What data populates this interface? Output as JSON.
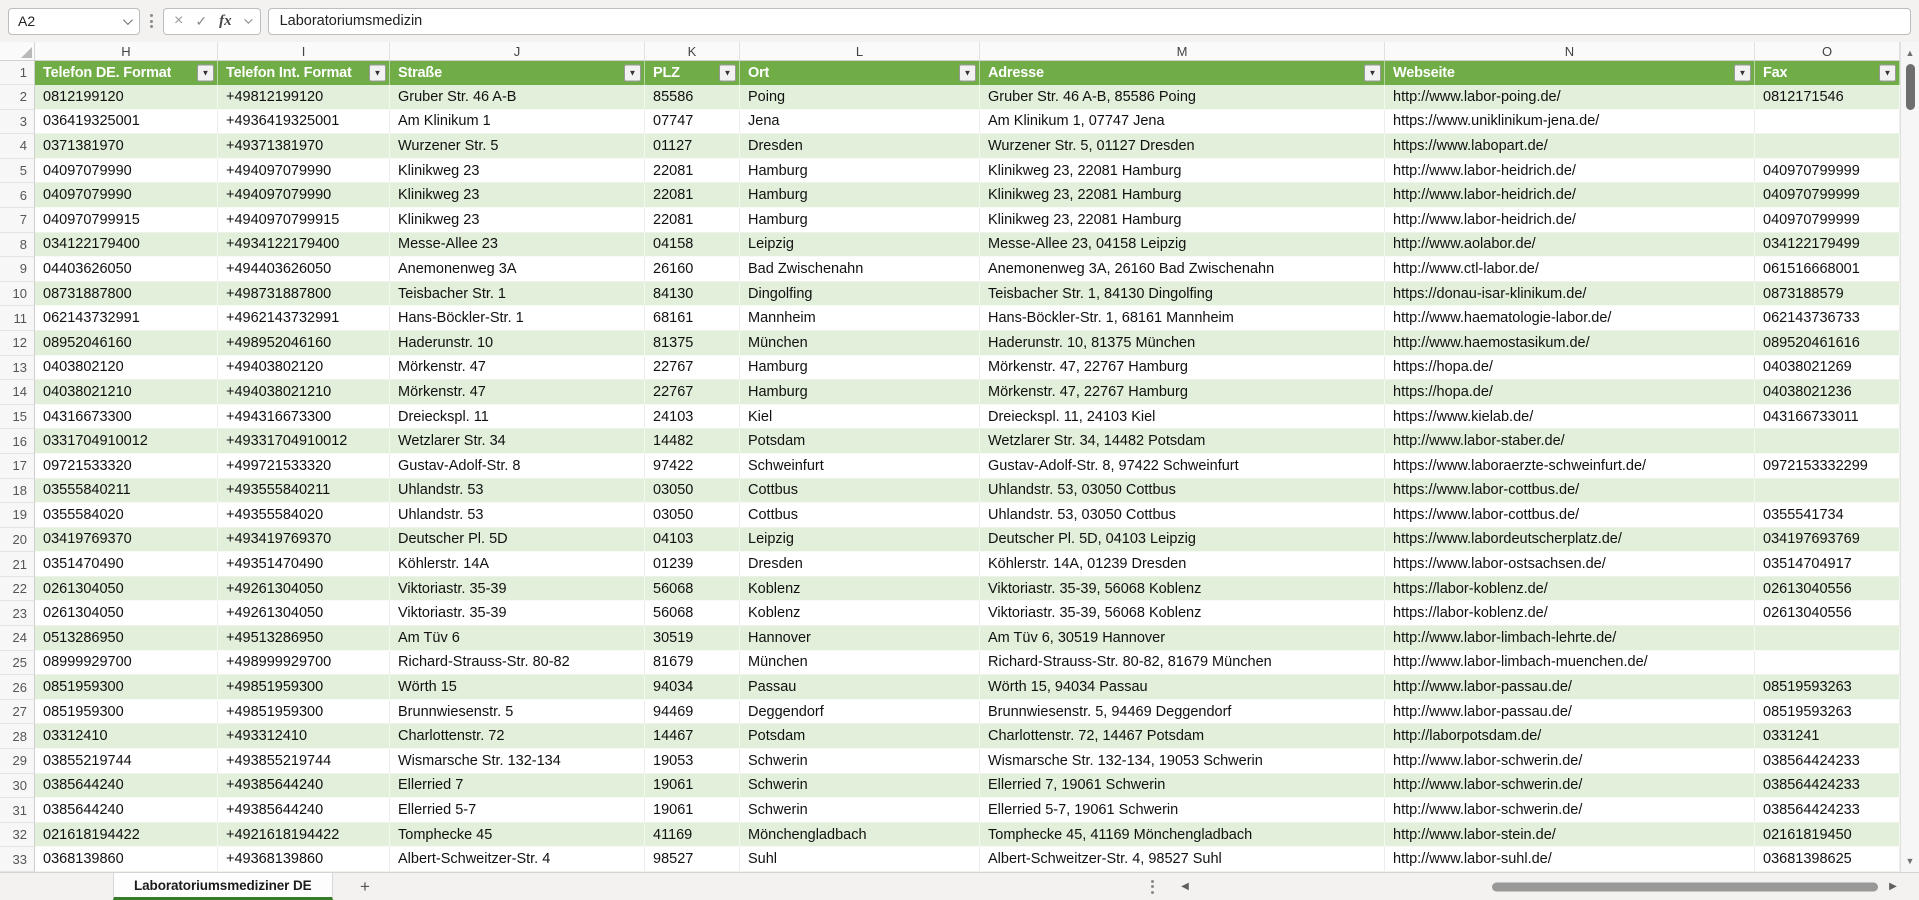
{
  "app": {
    "name_box": "A2",
    "formula_bar": "Laboratoriumsmedizin"
  },
  "icons": {
    "cancel": "×",
    "accept": "✓",
    "fx": "fx",
    "filter": "▼",
    "scroll_up": "▲",
    "scroll_down": "▼",
    "tab_prev": "◀",
    "tab_next": "▶",
    "add_sheet": "+"
  },
  "colors": {
    "header_green": "#70AD47",
    "banded_row_green": "#E2EFDA",
    "tab_underline_green": "#367C2B"
  },
  "sheet": {
    "header_row_number": "1",
    "first_data_row_number": 2,
    "columns": [
      {
        "letter": "H",
        "label": "Telefon DE. Format"
      },
      {
        "letter": "I",
        "label": "Telefon Int. Format"
      },
      {
        "letter": "J",
        "label": "Straße"
      },
      {
        "letter": "K",
        "label": "PLZ"
      },
      {
        "letter": "L",
        "label": "Ort"
      },
      {
        "letter": "M",
        "label": "Adresse"
      },
      {
        "letter": "N",
        "label": "Webseite"
      },
      {
        "letter": "O",
        "label": "Fax"
      }
    ],
    "rows": [
      [
        "0812199120",
        "+49812199120",
        "Gruber Str. 46 A-B",
        "85586",
        "Poing",
        "Gruber Str. 46 A-B, 85586 Poing",
        "http://www.labor-poing.de/",
        "0812171546"
      ],
      [
        "036419325001",
        "+4936419325001",
        "Am Klinikum 1",
        "07747",
        "Jena",
        "Am Klinikum 1, 07747 Jena",
        "https://www.uniklinikum-jena.de/",
        ""
      ],
      [
        "0371381970",
        "+49371381970",
        "Wurzener Str. 5",
        "01127",
        "Dresden",
        "Wurzener Str. 5, 01127 Dresden",
        "https://www.labopart.de/",
        ""
      ],
      [
        "04097079990",
        "+494097079990",
        "Klinikweg 23",
        "22081",
        "Hamburg",
        "Klinikweg 23, 22081 Hamburg",
        "http://www.labor-heidrich.de/",
        "040970799999"
      ],
      [
        "04097079990",
        "+494097079990",
        "Klinikweg 23",
        "22081",
        "Hamburg",
        "Klinikweg 23, 22081 Hamburg",
        "http://www.labor-heidrich.de/",
        "040970799999"
      ],
      [
        "040970799915",
        "+4940970799915",
        "Klinikweg 23",
        "22081",
        "Hamburg",
        "Klinikweg 23, 22081 Hamburg",
        "http://www.labor-heidrich.de/",
        "040970799999"
      ],
      [
        "034122179400",
        "+4934122179400",
        "Messe-Allee 23",
        "04158",
        "Leipzig",
        "Messe-Allee 23, 04158 Leipzig",
        "http://www.aolabor.de/",
        "034122179499"
      ],
      [
        "04403626050",
        "+494403626050",
        "Anemonenweg 3A",
        "26160",
        "Bad Zwischenahn",
        "Anemonenweg 3A, 26160 Bad Zwischenahn",
        "http://www.ctl-labor.de/",
        "061516668001"
      ],
      [
        "08731887800",
        "+498731887800",
        "Teisbacher Str. 1",
        "84130",
        "Dingolfing",
        "Teisbacher Str. 1, 84130 Dingolfing",
        "https://donau-isar-klinikum.de/",
        "0873188579"
      ],
      [
        "062143732991",
        "+4962143732991",
        "Hans-Böckler-Str. 1",
        "68161",
        "Mannheim",
        "Hans-Böckler-Str. 1, 68161 Mannheim",
        "http://www.haematologie-labor.de/",
        "062143736733"
      ],
      [
        "08952046160",
        "+498952046160",
        "Haderunstr. 10",
        "81375",
        "München",
        "Haderunstr. 10, 81375 München",
        "http://www.haemostasikum.de/",
        "089520461616"
      ],
      [
        "0403802120",
        "+49403802120",
        "Mörkenstr. 47",
        "22767",
        "Hamburg",
        "Mörkenstr. 47, 22767 Hamburg",
        "https://hopa.de/",
        "04038021269"
      ],
      [
        "04038021210",
        "+494038021210",
        "Mörkenstr. 47",
        "22767",
        "Hamburg",
        "Mörkenstr. 47, 22767 Hamburg",
        "https://hopa.de/",
        "04038021236"
      ],
      [
        "04316673300",
        "+494316673300",
        "Dreieckspl. 11",
        "24103",
        "Kiel",
        "Dreieckspl. 11, 24103 Kiel",
        "https://www.kielab.de/",
        "043166733011"
      ],
      [
        "0331704910012",
        "+49331704910012",
        "Wetzlarer Str. 34",
        "14482",
        "Potsdam",
        "Wetzlarer Str. 34, 14482 Potsdam",
        "http://www.labor-staber.de/",
        ""
      ],
      [
        "09721533320",
        "+499721533320",
        "Gustav-Adolf-Str. 8",
        "97422",
        "Schweinfurt",
        "Gustav-Adolf-Str. 8, 97422 Schweinfurt",
        "https://www.laboraerzte-schweinfurt.de/",
        "0972153332299"
      ],
      [
        "03555840211",
        "+493555840211",
        "Uhlandstr. 53",
        "03050",
        "Cottbus",
        "Uhlandstr. 53, 03050 Cottbus",
        "https://www.labor-cottbus.de/",
        ""
      ],
      [
        "0355584020",
        "+49355584020",
        "Uhlandstr. 53",
        "03050",
        "Cottbus",
        "Uhlandstr. 53, 03050 Cottbus",
        "https://www.labor-cottbus.de/",
        "0355541734"
      ],
      [
        "03419769370",
        "+493419769370",
        "Deutscher Pl. 5D",
        "04103",
        "Leipzig",
        "Deutscher Pl. 5D, 04103 Leipzig",
        "https://www.labordeutscherplatz.de/",
        "034197693769"
      ],
      [
        "0351470490",
        "+49351470490",
        "Köhlerstr. 14A",
        "01239",
        "Dresden",
        "Köhlerstr. 14A, 01239 Dresden",
        "https://www.labor-ostsachsen.de/",
        "03514704917"
      ],
      [
        "0261304050",
        "+49261304050",
        "Viktoriastr. 35-39",
        "56068",
        "Koblenz",
        "Viktoriastr. 35-39, 56068 Koblenz",
        "https://labor-koblenz.de/",
        "02613040556"
      ],
      [
        "0261304050",
        "+49261304050",
        "Viktoriastr. 35-39",
        "56068",
        "Koblenz",
        "Viktoriastr. 35-39, 56068 Koblenz",
        "https://labor-koblenz.de/",
        "02613040556"
      ],
      [
        "0513286950",
        "+49513286950",
        "Am Tüv 6",
        "30519",
        "Hannover",
        "Am Tüv 6, 30519 Hannover",
        "http://www.labor-limbach-lehrte.de/",
        ""
      ],
      [
        "08999929700",
        "+498999929700",
        "Richard-Strauss-Str. 80-82",
        "81679",
        "München",
        "Richard-Strauss-Str. 80-82, 81679 München",
        "http://www.labor-limbach-muenchen.de/",
        ""
      ],
      [
        "0851959300",
        "+49851959300",
        "Wörth 15",
        "94034",
        "Passau",
        "Wörth 15, 94034 Passau",
        "http://www.labor-passau.de/",
        "08519593263"
      ],
      [
        "0851959300",
        "+49851959300",
        "Brunnwiesenstr. 5",
        "94469",
        "Deggendorf",
        "Brunnwiesenstr. 5, 94469 Deggendorf",
        "http://www.labor-passau.de/",
        "08519593263"
      ],
      [
        "03312410",
        "+493312410",
        "Charlottenstr. 72",
        "14467",
        "Potsdam",
        "Charlottenstr. 72, 14467 Potsdam",
        "http://laborpotsdam.de/",
        "0331241"
      ],
      [
        "03855219744",
        "+493855219744",
        "Wismarsche Str. 132-134",
        "19053",
        "Schwerin",
        "Wismarsche Str. 132-134, 19053 Schwerin",
        "http://www.labor-schwerin.de/",
        "038564424233"
      ],
      [
        "0385644240",
        "+49385644240",
        "Ellerried 7",
        "19061",
        "Schwerin",
        "Ellerried 7, 19061 Schwerin",
        "http://www.labor-schwerin.de/",
        "038564424233"
      ],
      [
        "0385644240",
        "+49385644240",
        "Ellerried 5-7",
        "19061",
        "Schwerin",
        "Ellerried 5-7, 19061 Schwerin",
        "http://www.labor-schwerin.de/",
        "038564424233"
      ],
      [
        "021618194422",
        "+4921618194422",
        "Tomphecke 45",
        "41169",
        "Mönchengladbach",
        "Tomphecke 45, 41169 Mönchengladbach",
        "http://www.labor-stein.de/",
        "02161819450"
      ],
      [
        "0368139860",
        "+49368139860",
        "Albert-Schweitzer-Str. 4",
        "98527",
        "Suhl",
        "Albert-Schweitzer-Str. 4, 98527 Suhl",
        "http://www.labor-suhl.de/",
        "03681398625"
      ]
    ]
  },
  "tabbar": {
    "sheet_tab": "Laboratoriumsmediziner DE"
  }
}
